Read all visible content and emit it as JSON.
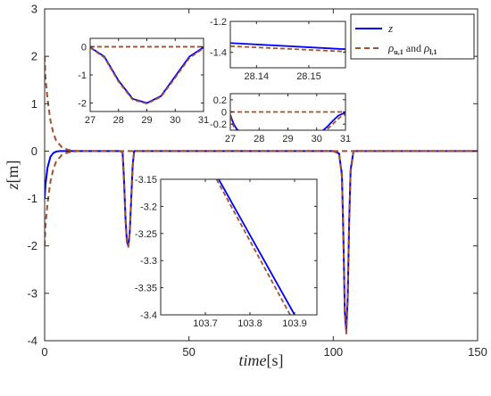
{
  "chart_data": [
    {
      "type": "line",
      "panel": "main",
      "xlabel_var": "time",
      "xlabel_unit": "[s]",
      "ylabel_var": "z",
      "ylabel_unit": "[m]",
      "xlim": [
        0,
        150
      ],
      "ylim": [
        -4,
        3
      ],
      "xticks": [
        "0",
        "50",
        "100",
        "150"
      ],
      "yticks": [
        "3",
        "2",
        "1",
        "0",
        "-1",
        "-2",
        "-3",
        "-4"
      ],
      "legend": {
        "placement": "top-right",
        "entries": [
          {
            "label_var": "z",
            "label_sub": "",
            "style": "solid",
            "color": "#0000ff"
          },
          {
            "label_var": "ρ",
            "label_sub": "u,1",
            "label_mid": " and ",
            "label_var2": "ρ",
            "label_sub2": "l,1",
            "style": "dashed",
            "color": "#a0522d"
          }
        ]
      },
      "series": [
        {
          "name": "z",
          "color": "#0000ff",
          "style": "solid",
          "x": [
            0,
            0.3,
            1,
            2,
            3,
            4,
            5,
            10,
            26,
            27,
            27.5,
            28,
            28.5,
            29,
            29.5,
            30,
            30.5,
            31,
            35,
            100,
            102,
            103,
            103.5,
            104,
            104.5,
            105,
            105.5,
            106,
            107,
            150
          ],
          "y": [
            -1.0,
            -0.7,
            -0.35,
            -0.12,
            -0.04,
            -0.01,
            0,
            0,
            0,
            -0.02,
            -0.6,
            -1.4,
            -1.9,
            -2.0,
            -1.7,
            -1.0,
            -0.3,
            0,
            0,
            0,
            -0.05,
            -0.5,
            -1.8,
            -3.4,
            -3.8,
            -3.1,
            -1.5,
            -0.4,
            0,
            0
          ]
        },
        {
          "name": "ρ",
          "color": "#a0522d",
          "style": "dashed",
          "x": [
            0,
            0.3,
            1,
            2,
            3,
            4,
            6,
            8,
            10,
            12,
            150
          ],
          "y": [
            2.0,
            1.55,
            1.1,
            0.65,
            0.38,
            0.22,
            0.08,
            0.03,
            0.01,
            0,
            0
          ]
        },
        {
          "name": "ρ",
          "color": "#a0522d",
          "style": "dashed",
          "x": [
            0,
            0.3,
            1,
            2,
            3,
            4,
            6,
            8,
            10,
            12,
            26,
            27,
            27.5,
            28,
            28.5,
            29,
            29.5,
            30,
            30.5,
            31,
            35,
            100,
            102,
            103,
            103.5,
            104,
            104.5,
            105,
            105.5,
            106,
            107,
            150
          ],
          "y": [
            -2.0,
            -1.55,
            -1.1,
            -0.65,
            -0.38,
            -0.22,
            -0.08,
            -0.03,
            -0.01,
            0,
            0,
            -0.03,
            -0.65,
            -1.45,
            -1.95,
            -2.02,
            -1.72,
            -1.05,
            -0.35,
            0,
            0,
            0,
            -0.06,
            -0.55,
            -1.85,
            -3.45,
            -3.85,
            -3.15,
            -1.55,
            -0.45,
            0,
            0
          ]
        }
      ]
    },
    {
      "type": "line",
      "panel": "inset-top-left",
      "xlim": [
        27,
        31
      ],
      "ylim": [
        -2.3,
        0.3
      ],
      "xticks": [
        "27",
        "28",
        "29",
        "30",
        "31"
      ],
      "yticks": [
        "0",
        "-1",
        "-2"
      ],
      "series": [
        {
          "name": "z",
          "color": "#0000ff",
          "style": "solid",
          "x": [
            27,
            27.5,
            28,
            28.5,
            29,
            29.5,
            30,
            30.5,
            31
          ],
          "y": [
            -0.02,
            -0.35,
            -1.2,
            -1.85,
            -2.0,
            -1.75,
            -1.05,
            -0.35,
            -0.02
          ]
        },
        {
          "name": "ρ",
          "color": "#a0522d",
          "style": "dashed",
          "x": [
            27,
            27.5,
            28,
            28.5,
            29,
            29.5,
            30,
            30.5,
            31
          ],
          "y": [
            -0.03,
            -0.38,
            -1.24,
            -1.88,
            -2.02,
            -1.78,
            -1.1,
            -0.4,
            -0.05
          ]
        },
        {
          "name": "ρ",
          "color": "#a0522d",
          "style": "dashed",
          "x": [
            27,
            31
          ],
          "y": [
            0,
            0
          ]
        }
      ]
    },
    {
      "type": "line",
      "panel": "inset-top-right",
      "xlim": [
        28.135,
        28.157
      ],
      "ylim": [
        -1.5,
        -1.2
      ],
      "xticks": [
        "28.14",
        "28.15"
      ],
      "yticks": [
        "-1.2",
        "-1.4"
      ],
      "series": [
        {
          "name": "z",
          "color": "#0000ff",
          "style": "solid",
          "x": [
            28.135,
            28.157
          ],
          "y": [
            -1.34,
            -1.38
          ]
        },
        {
          "name": "ρ",
          "color": "#a0522d",
          "style": "dashed",
          "x": [
            28.135,
            28.157
          ],
          "y": [
            -1.36,
            -1.395
          ]
        }
      ]
    },
    {
      "type": "line",
      "panel": "inset-middle-right",
      "xlim": [
        27,
        31
      ],
      "ylim": [
        -0.3,
        0.3
      ],
      "xticks": [
        "27",
        "28",
        "29",
        "30",
        "31"
      ],
      "yticks": [
        "0.2",
        "0",
        "-0.2"
      ],
      "series": [
        {
          "name": "z",
          "color": "#0000ff",
          "style": "solid",
          "x": [
            27,
            27.12,
            27.22,
            27.3,
            30.2,
            30.35,
            30.55,
            30.75,
            31
          ],
          "y": [
            -0.05,
            -0.2,
            -0.28,
            -0.31,
            -0.31,
            -0.25,
            -0.15,
            -0.06,
            -0.01
          ]
        },
        {
          "name": "ρ",
          "color": "#a0522d",
          "style": "dashed",
          "x": [
            27,
            27.1,
            27.2,
            27.28,
            30.25,
            30.4,
            30.6,
            30.8,
            31
          ],
          "y": [
            -0.07,
            -0.22,
            -0.3,
            -0.31,
            -0.31,
            -0.27,
            -0.18,
            -0.09,
            -0.04
          ]
        },
        {
          "name": "ρ",
          "color": "#a0522d",
          "style": "dashed",
          "x": [
            27,
            31
          ],
          "y": [
            0,
            0
          ]
        }
      ]
    },
    {
      "type": "line",
      "panel": "inset-bottom",
      "xlim": [
        103.6,
        103.95
      ],
      "ylim": [
        -3.4,
        -3.15
      ],
      "xticks": [
        "103.7",
        "103.8",
        "103.9"
      ],
      "yticks": [
        "-3.15",
        "-3.2",
        "-3.25",
        "-3.3",
        "-3.35",
        "-3.4"
      ],
      "series": [
        {
          "name": "z",
          "color": "#0000ff",
          "style": "solid",
          "x": [
            103.73,
            103.9
          ],
          "y": [
            -3.15,
            -3.4
          ]
        },
        {
          "name": "ρ",
          "color": "#a0522d",
          "style": "dashed",
          "x": [
            103.725,
            103.89
          ],
          "y": [
            -3.15,
            -3.4
          ]
        }
      ]
    }
  ]
}
